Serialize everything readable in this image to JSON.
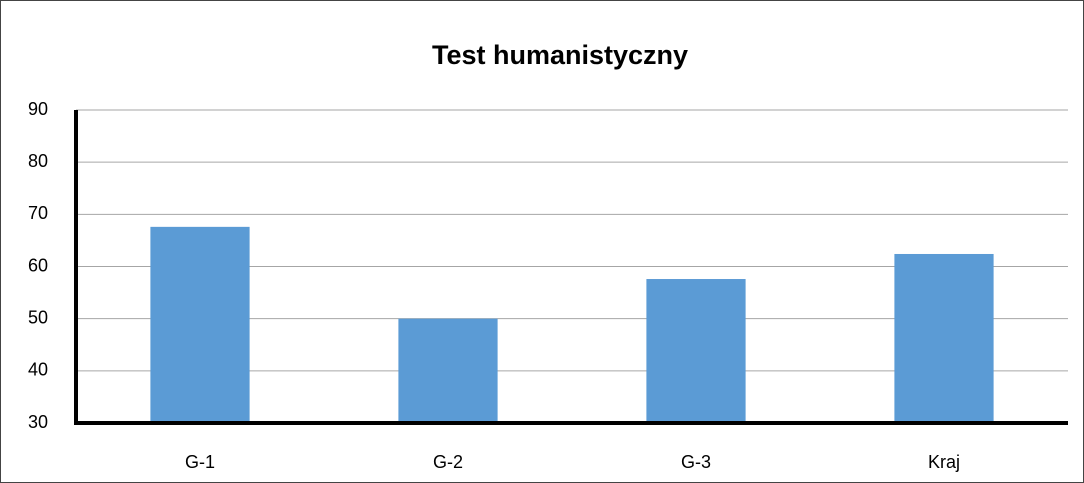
{
  "chart_data": {
    "type": "bar",
    "title": "Test humanistyczny",
    "categories": [
      "G-1",
      "G-2",
      "G-3",
      "Kraj"
    ],
    "values": [
      67.6,
      50,
      57.6,
      62.4
    ],
    "color": "#5b9bd5",
    "ylim": [
      30,
      90
    ],
    "yticks": [
      30,
      40,
      50,
      60,
      70,
      80,
      90
    ],
    "grid": true
  }
}
